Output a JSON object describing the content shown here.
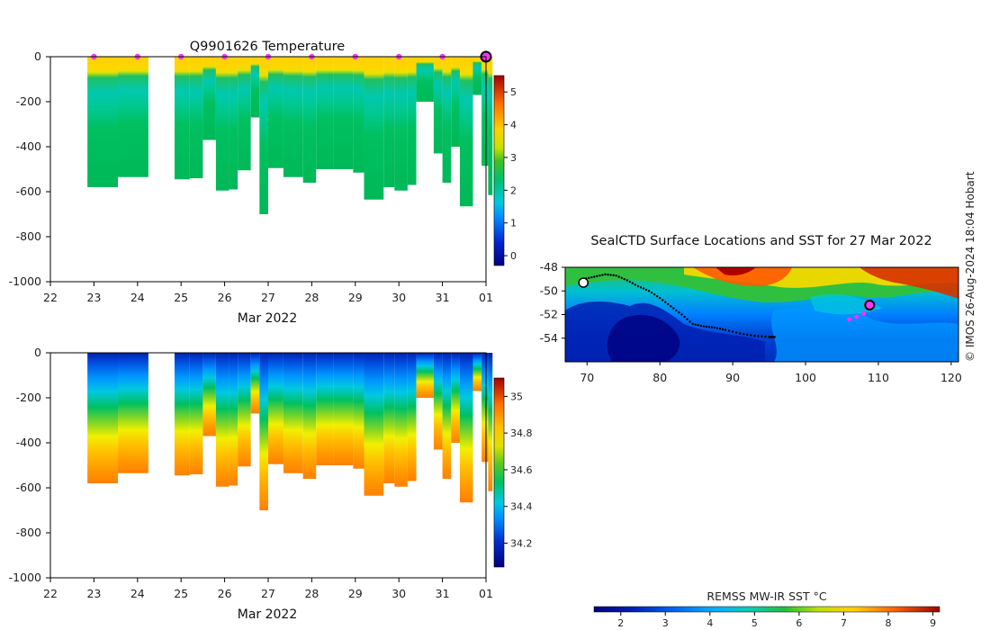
{
  "credit": "© IMOS 26-Aug-2024 18:04 Hobart",
  "chart_data": [
    {
      "type": "heatmap",
      "title": "Q9901626  Temperature",
      "xlabel": "Mar 2022",
      "x_ticks": [
        "22",
        "23",
        "24",
        "25",
        "26",
        "27",
        "28",
        "29",
        "30",
        "31",
        "01"
      ],
      "y_ticks": [
        "0",
        "-200",
        "-400",
        "-600",
        "-800",
        "-1000"
      ],
      "ylim": [
        -1000,
        0
      ],
      "xlim": [
        22,
        32
      ],
      "colorbar": {
        "ticks": [
          "0",
          "1",
          "2",
          "3",
          "4",
          "5"
        ],
        "range": [
          -0.3,
          5.5
        ]
      },
      "profile_max_depth_m": [
        [
          22.85,
          23.55,
          580
        ],
        [
          23.55,
          24.25,
          535
        ],
        [
          24.85,
          25.2,
          545
        ],
        [
          25.2,
          25.5,
          540
        ],
        [
          25.5,
          25.8,
          370
        ],
        [
          25.8,
          26.1,
          595
        ],
        [
          26.1,
          26.3,
          590
        ],
        [
          26.3,
          26.6,
          505
        ],
        [
          26.6,
          26.8,
          270
        ],
        [
          26.8,
          27.0,
          700
        ],
        [
          27.0,
          27.35,
          495
        ],
        [
          27.35,
          27.8,
          535
        ],
        [
          27.8,
          28.1,
          560
        ],
        [
          28.1,
          28.5,
          500
        ],
        [
          28.5,
          28.95,
          500
        ],
        [
          28.95,
          29.2,
          515
        ],
        [
          29.2,
          29.65,
          635
        ],
        [
          29.65,
          29.9,
          580
        ],
        [
          29.9,
          30.2,
          595
        ],
        [
          30.2,
          30.4,
          570
        ],
        [
          30.4,
          30.8,
          200
        ],
        [
          30.8,
          31.0,
          430
        ],
        [
          31.0,
          31.2,
          560
        ],
        [
          31.2,
          31.4,
          400
        ],
        [
          31.4,
          31.7,
          665
        ],
        [
          31.7,
          31.9,
          170
        ],
        [
          31.9,
          32.05,
          485
        ],
        [
          32.05,
          32.15,
          615
        ]
      ],
      "markers_x": [
        23,
        24,
        25,
        26,
        27,
        28,
        29,
        30,
        31
      ],
      "current_marker_x": 32.0
    },
    {
      "type": "heatmap",
      "title": "",
      "xlabel": "Mar 2022",
      "x_ticks": [
        "22",
        "23",
        "24",
        "25",
        "26",
        "27",
        "28",
        "29",
        "30",
        "31",
        "01"
      ],
      "y_ticks": [
        "0",
        "-200",
        "-400",
        "-600",
        "-800",
        "-1000"
      ],
      "ylim": [
        -1000,
        0
      ],
      "colorbar": {
        "ticks": [
          "34.2",
          "34.4",
          "34.6",
          "34.8",
          "35"
        ],
        "range": [
          34.07,
          35.1
        ]
      }
    },
    {
      "type": "heatmap",
      "title": "SealCTD Surface Locations and SST for 27 Mar 2022",
      "x_ticks": [
        "70",
        "80",
        "90",
        "100",
        "110",
        "120"
      ],
      "y_ticks": [
        "-48",
        "-50",
        "-52",
        "-54"
      ],
      "xlim": [
        67,
        121
      ],
      "ylim": [
        -56,
        -48
      ],
      "colorbar": {
        "label": "REMSS MW-IR SST °C",
        "ticks": [
          "2",
          "3",
          "4",
          "5",
          "6",
          "7",
          "8",
          "9"
        ],
        "range": [
          1.4,
          9.15
        ]
      },
      "track": [
        [
          69.5,
          -49.0
        ],
        [
          71,
          -48.8
        ],
        [
          72.5,
          -48.6
        ],
        [
          74,
          -48.7
        ],
        [
          75.5,
          -49.1
        ],
        [
          77,
          -49.6
        ],
        [
          78.5,
          -50.0
        ],
        [
          80,
          -50.6
        ],
        [
          81.5,
          -51.3
        ],
        [
          83,
          -52.0
        ],
        [
          84.5,
          -52.8
        ],
        [
          86,
          -53.0
        ],
        [
          87.5,
          -53.1
        ],
        [
          89,
          -53.3
        ],
        [
          91,
          -53.6
        ],
        [
          93,
          -53.8
        ],
        [
          95,
          -53.9
        ],
        [
          96,
          -53.9
        ]
      ],
      "recent_track": [
        [
          106,
          -52.4
        ],
        [
          107,
          -52.2
        ],
        [
          108,
          -51.9
        ],
        [
          108.8,
          -51.2
        ]
      ],
      "current_position": [
        108.8,
        -51.2
      ]
    }
  ]
}
